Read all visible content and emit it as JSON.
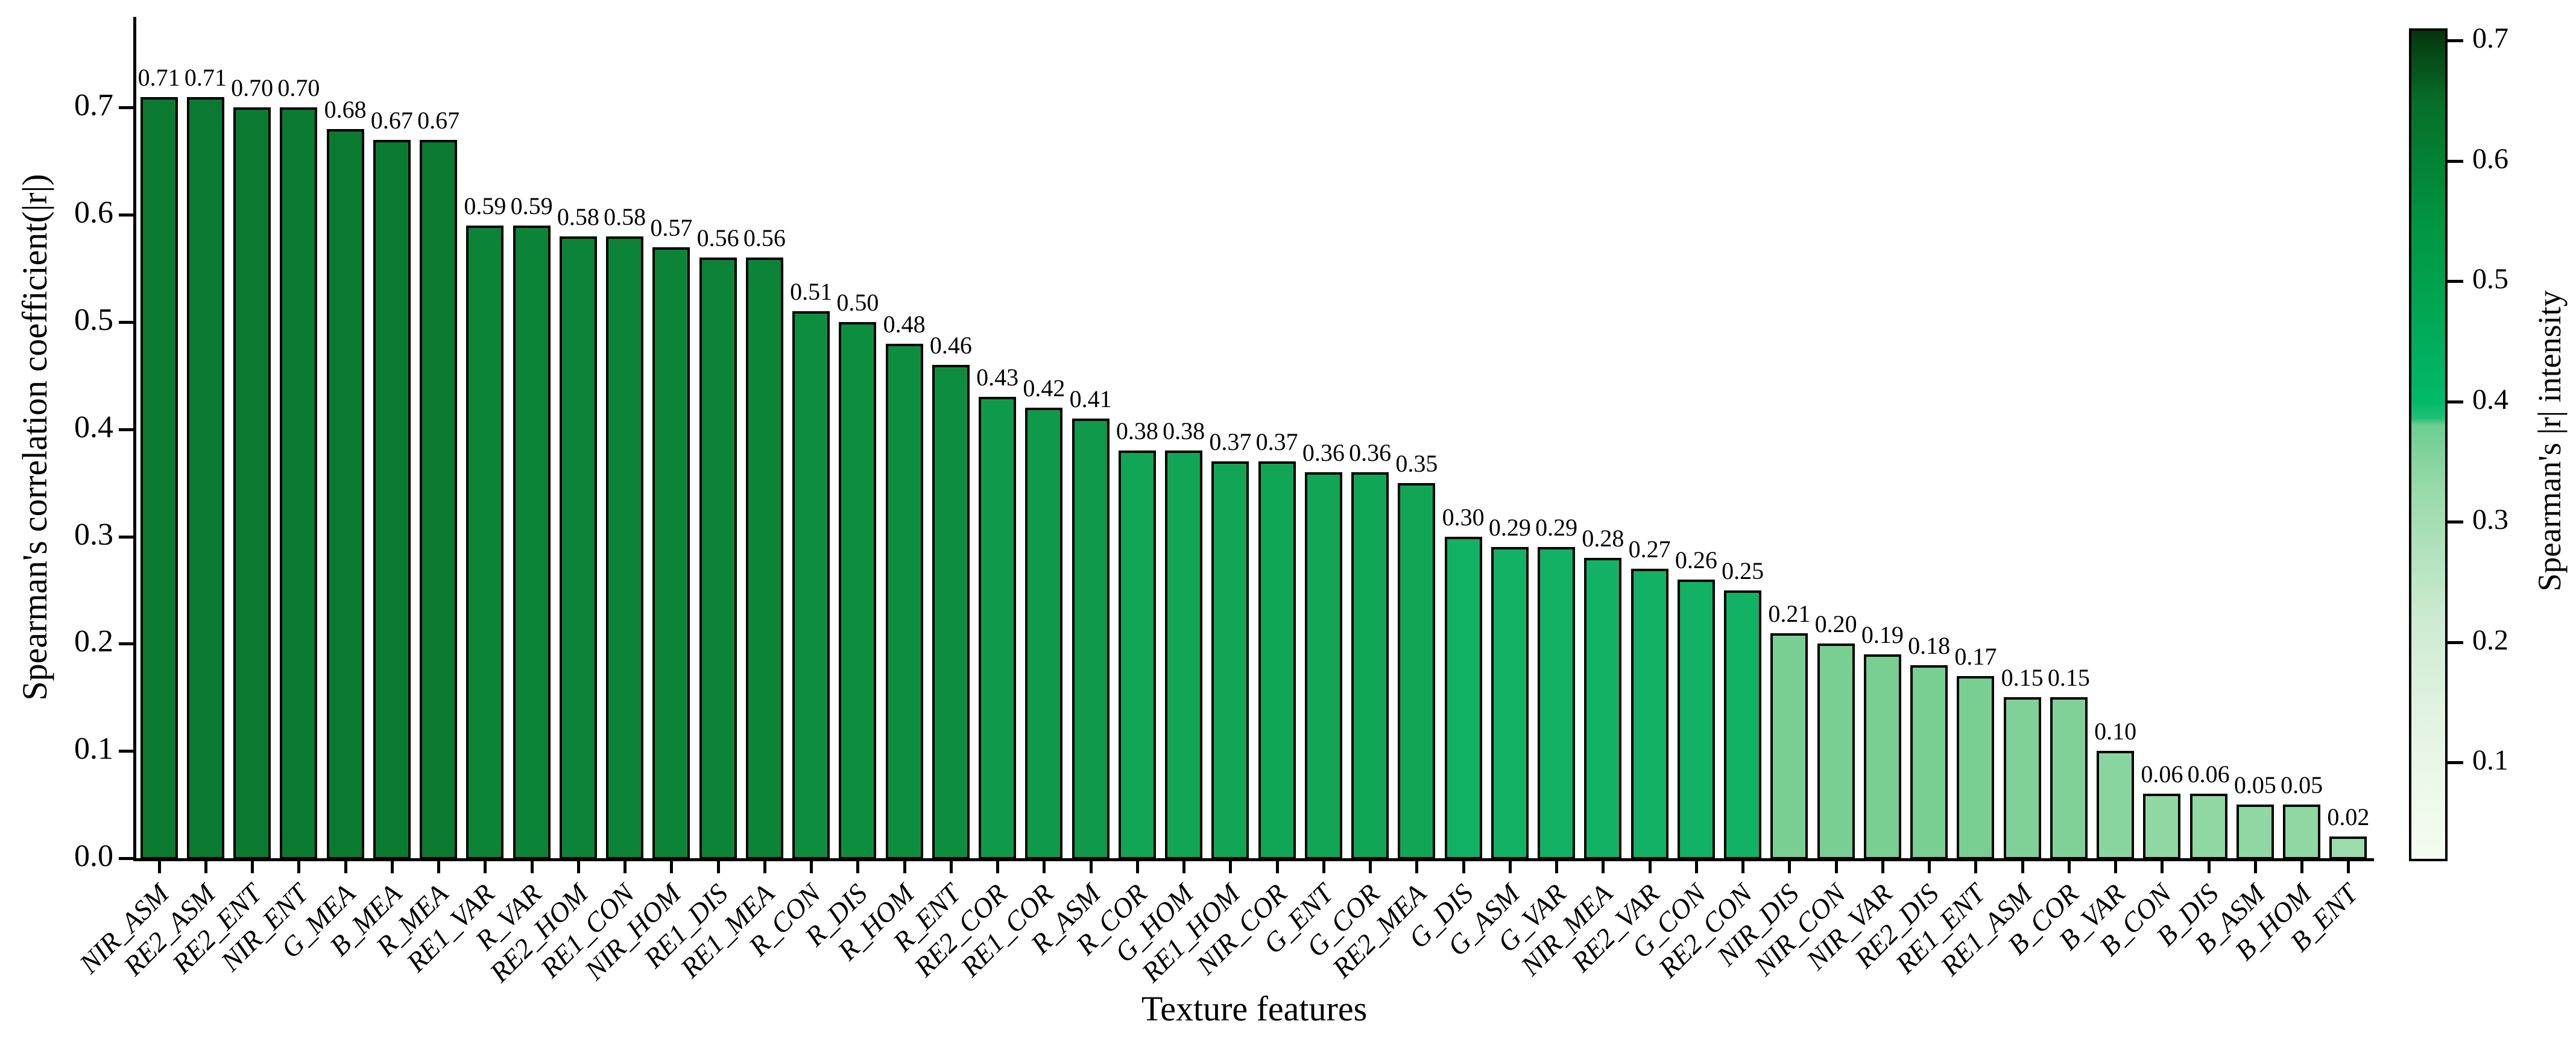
{
  "chart_data": {
    "type": "bar",
    "title": "",
    "xlabel": "Texture features",
    "ylabel": "Spearman's correlation coefficient(|r|)",
    "colorbar_label": "Spearman's |r| intensity",
    "categories": [
      "NIR_ASM",
      "RE2_ASM",
      "RE2_ENT",
      "NIR_ENT",
      "G_MEA",
      "B_MEA",
      "R_MEA",
      "RE1_VAR",
      "R_VAR",
      "RE2_HOM",
      "RE1_CON",
      "NIR_HOM",
      "RE1_DIS",
      "RE1_MEA",
      "R_CON",
      "R_DIS",
      "R_HOM",
      "R_ENT",
      "RE2_COR",
      "RE1_COR",
      "R_ASM",
      "R_COR",
      "G_HOM",
      "RE1_HOM",
      "NIR_COR",
      "G_ENT",
      "G_COR",
      "RE2_MEA",
      "G_DIS",
      "G_ASM",
      "G_VAR",
      "NIR_MEA",
      "RE2_VAR",
      "G_CON",
      "RE2_CON",
      "NIR_DIS",
      "NIR_CON",
      "NIR_VAR",
      "RE2_DIS",
      "RE1_ENT",
      "RE1_ASM",
      "B_COR",
      "B_VAR",
      "B_CON",
      "B_DIS",
      "B_ASM",
      "B_HOM",
      "B_ENT"
    ],
    "values": [
      0.71,
      0.71,
      0.7,
      0.7,
      0.68,
      0.67,
      0.67,
      0.59,
      0.59,
      0.58,
      0.58,
      0.57,
      0.56,
      0.56,
      0.51,
      0.5,
      0.48,
      0.46,
      0.43,
      0.42,
      0.41,
      0.38,
      0.38,
      0.37,
      0.37,
      0.36,
      0.36,
      0.35,
      0.3,
      0.29,
      0.29,
      0.28,
      0.27,
      0.26,
      0.25,
      0.21,
      0.2,
      0.19,
      0.18,
      0.17,
      0.15,
      0.15,
      0.1,
      0.06,
      0.06,
      0.05,
      0.05,
      0.02
    ],
    "value_labels": [
      "0.71",
      "0.71",
      "0.70",
      "0.70",
      "0.68",
      "0.67",
      "0.67",
      "0.59",
      "0.59",
      "0.58",
      "0.58",
      "0.57",
      "0.56",
      "0.56",
      "0.51",
      "0.50",
      "0.48",
      "0.46",
      "0.43",
      "0.42",
      "0.41",
      "0.38",
      "0.38",
      "0.37",
      "0.37",
      "0.36",
      "0.36",
      "0.35",
      "0.30",
      "0.29",
      "0.29",
      "0.28",
      "0.27",
      "0.26",
      "0.25",
      "0.21",
      "0.20",
      "0.19",
      "0.18",
      "0.17",
      "0.15",
      "0.15",
      "0.10",
      "0.06",
      "0.06",
      "0.05",
      "0.05",
      "0.02"
    ],
    "ylim": [
      0.0,
      0.785
    ],
    "yticks": [
      0.0,
      0.1,
      0.2,
      0.3,
      0.4,
      0.5,
      0.6,
      0.7
    ],
    "y_tick_labels": [
      "0.0",
      "0.1",
      "0.2",
      "0.3",
      "0.4",
      "0.5",
      "0.6",
      "0.7"
    ],
    "grid": false,
    "legend_position": "none",
    "colorbar_range": [
      0.02,
      0.71
    ],
    "colorbar_ticks": [
      0.1,
      0.2,
      0.3,
      0.4,
      0.5,
      0.6,
      0.7
    ],
    "colorbar_tick_labels": [
      "0.1",
      "0.2",
      "0.3",
      "0.4",
      "0.5",
      "0.6",
      "0.7"
    ],
    "bar_edge_color": "#000000",
    "bar_color_scale": [
      {
        "min": 0.6,
        "color": "#0a7a30"
      },
      {
        "min": 0.52,
        "color": "#0c8437"
      },
      {
        "min": 0.44,
        "color": "#0d8e3f"
      },
      {
        "min": 0.395,
        "color": "#0f9a4a"
      },
      {
        "min": 0.315,
        "color": "#10a656"
      },
      {
        "min": 0.23,
        "color": "#11b263"
      },
      {
        "min": 0.165,
        "color": "#79ce92"
      },
      {
        "min": 0.12,
        "color": "#80d198"
      },
      {
        "min": 0.075,
        "color": "#89d59f"
      },
      {
        "min": 0.035,
        "color": "#8fd8a4"
      },
      {
        "min": 0.0,
        "color": "#9adcac"
      }
    ],
    "colorbar_gradient": [
      {
        "pct": 0.0,
        "color": "#06350e"
      },
      {
        "pct": 8.7,
        "color": "#076f28"
      },
      {
        "pct": 23.2,
        "color": "#009540"
      },
      {
        "pct": 37.7,
        "color": "#00ad5a"
      },
      {
        "pct": 44.9,
        "color": "#00ba6a"
      },
      {
        "pct": 46.8,
        "color": "#1fc077"
      },
      {
        "pct": 47.6,
        "color": "#6ecd90"
      },
      {
        "pct": 55.1,
        "color": "#96daa7"
      },
      {
        "pct": 62.3,
        "color": "#b0e1bb"
      },
      {
        "pct": 71.0,
        "color": "#ccebd1"
      },
      {
        "pct": 81.2,
        "color": "#dff2df"
      },
      {
        "pct": 91.3,
        "color": "#edf8ea"
      },
      {
        "pct": 100.0,
        "color": "#f5fcf2"
      }
    ]
  }
}
